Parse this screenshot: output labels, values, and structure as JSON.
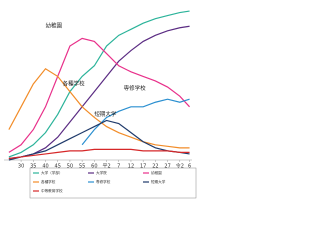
{
  "chart_data": {
    "type": "line",
    "x": [
      1950,
      1955,
      1960,
      1965,
      1970,
      1975,
      1980,
      1985,
      1990,
      1995,
      2000,
      2005,
      2010,
      2015,
      2020,
      2024
    ],
    "xlim": [
      1948,
      2025
    ],
    "xticks": [
      {
        "value": 1955,
        "label": "30"
      },
      {
        "value": 1960,
        "label": "35"
      },
      {
        "value": 1965,
        "label": "40"
      },
      {
        "value": 1970,
        "label": "45"
      },
      {
        "value": 1975,
        "label": "50"
      },
      {
        "value": 1980,
        "label": "55"
      },
      {
        "value": 1985,
        "label": "60"
      },
      {
        "value": 1990,
        "label": "平2"
      },
      {
        "value": 1995,
        "label": "7"
      },
      {
        "value": 2000,
        "label": "12"
      },
      {
        "value": 2005,
        "label": "17"
      },
      {
        "value": 2010,
        "label": "22"
      },
      {
        "value": 2015,
        "label": "27"
      },
      {
        "value": 2020,
        "label": "令2"
      },
      {
        "value": 2024,
        "label": "6"
      }
    ],
    "ylim": [
      0,
      100
    ],
    "series": [
      {
        "name": "大学（学部）",
        "color": "#2bb39a",
        "values": [
          2,
          5,
          10,
          18,
          30,
          45,
          55,
          62,
          75,
          82,
          86,
          90,
          93,
          95,
          97,
          98
        ]
      },
      {
        "name": "大学院",
        "color": "#5b2c83",
        "values": [
          1,
          2,
          4,
          8,
          15,
          25,
          35,
          45,
          55,
          65,
          72,
          78,
          82,
          85,
          87,
          88
        ]
      },
      {
        "name": "幼稚園",
        "color": "#e8308a",
        "values": [
          5,
          10,
          20,
          35,
          55,
          75,
          80,
          78,
          70,
          62,
          58,
          55,
          52,
          48,
          42,
          35
        ]
      },
      {
        "name": "各種学校",
        "color": "#f28c28",
        "values": [
          20,
          35,
          50,
          60,
          55,
          45,
          35,
          28,
          22,
          18,
          15,
          12,
          10,
          9,
          8,
          8
        ]
      },
      {
        "name": "専修学校",
        "color": "#2a8fd0",
        "values": [
          null,
          null,
          null,
          null,
          null,
          null,
          10,
          20,
          28,
          32,
          35,
          35,
          38,
          40,
          38,
          40
        ]
      },
      {
        "name": "短期大学",
        "color": "#1f3a6b",
        "values": [
          0,
          2,
          4,
          6,
          10,
          14,
          18,
          22,
          26,
          24,
          18,
          12,
          8,
          6,
          5,
          4
        ]
      },
      {
        "name": "中等教育学校",
        "color": "#d62728",
        "values": [
          1,
          2,
          3,
          4,
          5,
          6,
          6,
          7,
          7,
          7,
          7,
          6,
          6,
          6,
          5,
          5
        ]
      }
    ],
    "annotations": [
      {
        "series": 2,
        "x": 1965,
        "y": 88
      },
      {
        "series": 3,
        "x": 1972,
        "y": 50
      },
      {
        "series": 4,
        "x": 1997,
        "y": 47
      },
      {
        "series": 5,
        "x": 1985,
        "y": 30
      }
    ]
  }
}
